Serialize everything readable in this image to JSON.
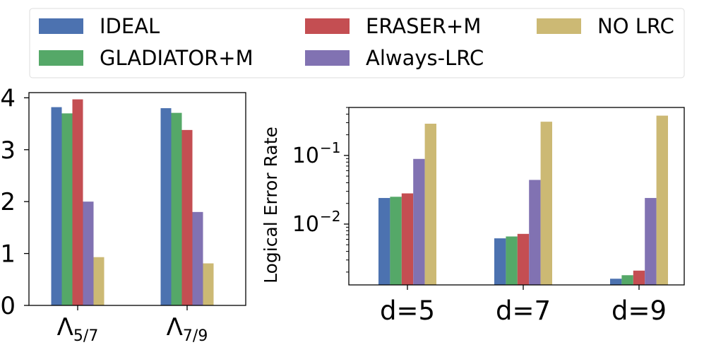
{
  "legend": {
    "placement": "top",
    "entries": [
      {
        "label": "IDEAL",
        "color": "#4c72b0"
      },
      {
        "label": "GLADIATOR+M",
        "color": "#55a868"
      },
      {
        "label": "ERASER+M",
        "color": "#c44e52"
      },
      {
        "label": "Always-LRC",
        "color": "#8172b2"
      },
      {
        "label": "NO LRC",
        "color": "#ccb974"
      }
    ]
  },
  "chart_data": [
    {
      "type": "bar",
      "title": "",
      "xlabel": "",
      "ylabel": "",
      "categories": [
        {
          "base": "Λ",
          "sub": "5/7"
        },
        {
          "base": "Λ",
          "sub": "7/9"
        }
      ],
      "ylim": [
        0,
        4.1
      ],
      "yticks": [
        0,
        1,
        2,
        3,
        4
      ],
      "ytick_labels": [
        "0",
        "1",
        "2",
        "3",
        "4"
      ],
      "series": [
        {
          "name": "IDEAL",
          "values": [
            3.82,
            3.8
          ]
        },
        {
          "name": "GLADIATOR+M",
          "values": [
            3.7,
            3.71
          ]
        },
        {
          "name": "ERASER+M",
          "values": [
            3.97,
            3.38
          ]
        },
        {
          "name": "Always-LRC",
          "values": [
            2.0,
            1.8
          ]
        },
        {
          "name": "NO LRC",
          "values": [
            0.93,
            0.81
          ]
        }
      ]
    },
    {
      "type": "bar",
      "title": "",
      "xlabel": "",
      "ylabel": "Logical Error Rate",
      "yscale": "log",
      "categories": [
        "d=5",
        "d=7",
        "d=9"
      ],
      "ylim": [
        0.0013,
        0.5
      ],
      "yticks": [
        0.1,
        0.01
      ],
      "ytick_labels": [
        {
          "base": "10",
          "exp": "−1"
        },
        {
          "base": "10",
          "exp": "−2"
        }
      ],
      "series": [
        {
          "name": "IDEAL",
          "values": [
            0.024,
            0.0062,
            0.0016
          ]
        },
        {
          "name": "GLADIATOR+M",
          "values": [
            0.025,
            0.0066,
            0.0018
          ]
        },
        {
          "name": "ERASER+M",
          "values": [
            0.028,
            0.0072,
            0.0021
          ]
        },
        {
          "name": "Always-LRC",
          "values": [
            0.089,
            0.044,
            0.024
          ]
        },
        {
          "name": "NO LRC",
          "values": [
            0.29,
            0.31,
            0.38
          ]
        }
      ]
    }
  ]
}
